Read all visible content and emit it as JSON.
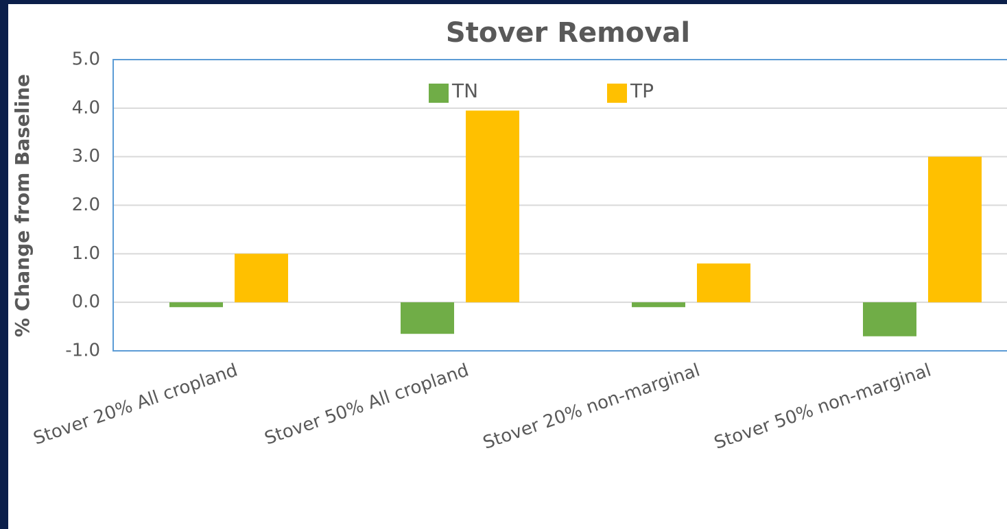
{
  "chart_data": {
    "type": "bar",
    "title": "Stover Removal",
    "ylabel": "% Change from Baseline",
    "categories": [
      "Stover 20% All cropland",
      "Stover 50% All cropland",
      "Stover 20% non-marginal",
      "Stover 50% non-marginal"
    ],
    "series": [
      {
        "name": "TN",
        "color": "#70ad47",
        "values": [
          -0.1,
          -0.65,
          -0.1,
          -0.7
        ]
      },
      {
        "name": "TP",
        "color": "#ffc000",
        "values": [
          1.0,
          3.95,
          0.8,
          3.0
        ]
      }
    ],
    "ylim": [
      -1,
      5
    ],
    "yticks": [
      {
        "value": -1,
        "label": "-1.0"
      },
      {
        "value": 0,
        "label": "0.0"
      },
      {
        "value": 1,
        "label": "1.0"
      },
      {
        "value": 2,
        "label": "2.0"
      },
      {
        "value": 3,
        "label": "3.0"
      },
      {
        "value": 4,
        "label": "4.0"
      },
      {
        "value": 5,
        "label": "5.0"
      }
    ],
    "grid": true,
    "legend": "top"
  }
}
